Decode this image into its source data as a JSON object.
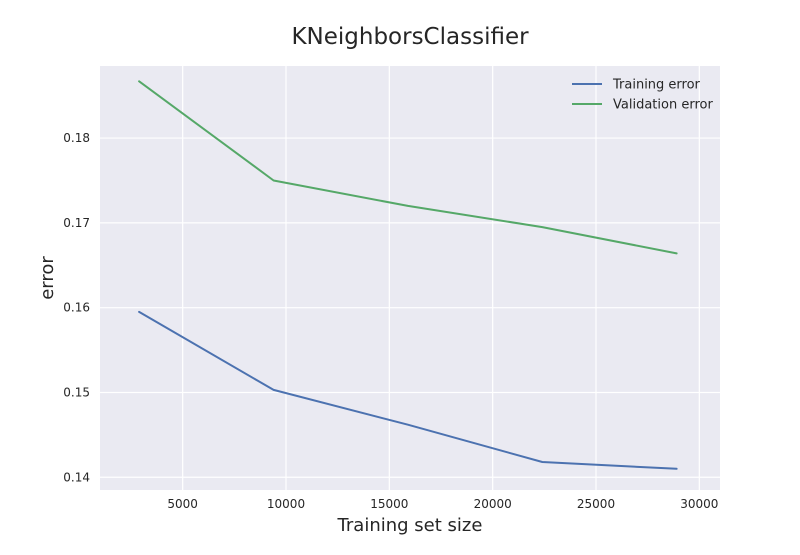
{
  "chart_data": {
    "type": "line",
    "title": "KNeighborsClassifier",
    "xlabel": "Training set size",
    "ylabel": "error",
    "xlim": [
      1000,
      31000
    ],
    "ylim": [
      0.1385,
      0.1885
    ],
    "xticks": [
      5000,
      10000,
      15000,
      20000,
      25000,
      30000
    ],
    "yticks": [
      0.14,
      0.15,
      0.16,
      0.17,
      0.18
    ],
    "grid": true,
    "legend_position": "top-right",
    "series": [
      {
        "name": "Training error",
        "color": "#4c72b0",
        "x": [
          2890,
          9400,
          15900,
          22400,
          28900
        ],
        "y": [
          0.1595,
          0.1503,
          0.1462,
          0.1418,
          0.141
        ]
      },
      {
        "name": "Validation error",
        "color": "#55a868",
        "x": [
          2890,
          9400,
          15900,
          22400,
          28900
        ],
        "y": [
          0.1867,
          0.175,
          0.172,
          0.1695,
          0.1664
        ]
      }
    ]
  }
}
